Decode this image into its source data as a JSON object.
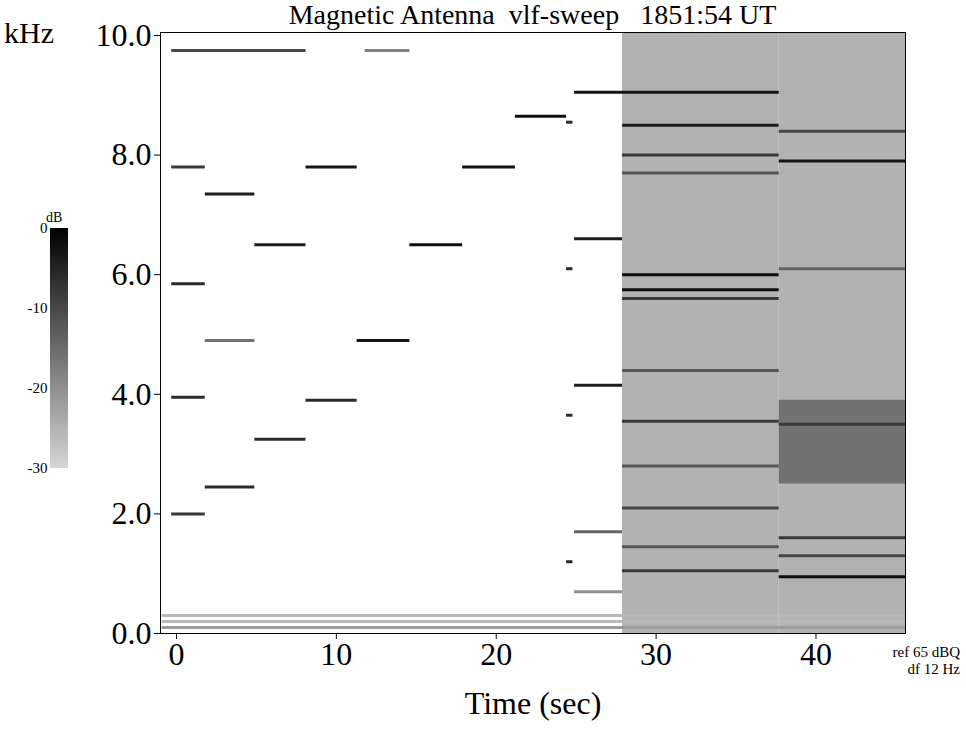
{
  "chart_data": {
    "type": "spectrogram",
    "title": "Magnetic Antenna  vlf-sweep   1851:54 UT",
    "x_label": "Time (sec)",
    "y_label": "kHz",
    "xlim": [
      -1,
      45.6
    ],
    "ylim": [
      0,
      10.05
    ],
    "xticks": [
      0,
      10,
      20,
      30,
      40
    ],
    "yticks": [
      {
        "value": 0,
        "label": "0.0"
      },
      {
        "value": 2,
        "label": "2.0"
      },
      {
        "value": 4,
        "label": "4.0"
      },
      {
        "value": 6,
        "label": "6.0"
      },
      {
        "value": 8,
        "label": "8.0"
      },
      {
        "value": 10,
        "label": "10.0"
      }
    ],
    "annotations": [
      "ref 65 dBQ",
      "df 12 Hz"
    ],
    "colorbar": {
      "label": "dB",
      "lim": [
        -30,
        0
      ],
      "ticks": [
        0,
        -10,
        -20,
        -30
      ]
    },
    "regions": [
      {
        "t0": 27.9,
        "t1": 37.7,
        "f0": 0,
        "f1": 10.05,
        "level": -25
      },
      {
        "t0": 37.7,
        "t1": 45.6,
        "f0": 0,
        "f1": 10.05,
        "level": -25
      },
      {
        "t0": 37.7,
        "t1": 45.6,
        "f0": 2.5,
        "f1": 3.9,
        "level": -16
      }
    ],
    "segments": [
      {
        "t0": -0.3,
        "t1": 1.8,
        "f": 2.0,
        "level": -8
      },
      {
        "t0": -0.3,
        "t1": 1.8,
        "f": 3.95,
        "level": -6
      },
      {
        "t0": -0.3,
        "t1": 1.8,
        "f": 5.85,
        "level": -6
      },
      {
        "t0": -0.3,
        "t1": 1.8,
        "f": 7.8,
        "level": -8
      },
      {
        "t0": -0.3,
        "t1": 8.1,
        "f": 9.75,
        "level": -10
      },
      {
        "t0": 1.8,
        "t1": 4.9,
        "f": 2.45,
        "level": -6
      },
      {
        "t0": 1.8,
        "t1": 4.9,
        "f": 4.9,
        "level": -16
      },
      {
        "t0": 1.8,
        "t1": 4.9,
        "f": 7.35,
        "level": -4
      },
      {
        "t0": 4.9,
        "t1": 8.1,
        "f": 3.25,
        "level": -6
      },
      {
        "t0": 4.9,
        "t1": 8.1,
        "f": 6.5,
        "level": -4
      },
      {
        "t0": 8.1,
        "t1": 11.3,
        "f": 3.9,
        "level": -6
      },
      {
        "t0": 8.1,
        "t1": 11.3,
        "f": 7.8,
        "level": -3
      },
      {
        "t0": 11.3,
        "t1": 14.6,
        "f": 4.9,
        "level": -3
      },
      {
        "t0": 11.8,
        "t1": 14.6,
        "f": 9.75,
        "level": -18
      },
      {
        "t0": 14.6,
        "t1": 17.9,
        "f": 6.5,
        "level": -2
      },
      {
        "t0": 17.9,
        "t1": 21.2,
        "f": 7.8,
        "level": -2
      },
      {
        "t0": 21.2,
        "t1": 24.4,
        "f": 8.65,
        "level": -2
      },
      {
        "t0": 24.4,
        "t1": 24.8,
        "f": 1.2,
        "level": -6
      },
      {
        "t0": 24.4,
        "t1": 24.8,
        "f": 3.65,
        "level": -6
      },
      {
        "t0": 24.4,
        "t1": 24.8,
        "f": 6.1,
        "level": -6
      },
      {
        "t0": 24.4,
        "t1": 24.8,
        "f": 8.55,
        "level": -6
      },
      {
        "t0": 24.9,
        "t1": 27.9,
        "f": 0.7,
        "level": -20
      },
      {
        "t0": 24.9,
        "t1": 27.9,
        "f": 1.7,
        "level": -14
      },
      {
        "t0": 24.9,
        "t1": 27.9,
        "f": 4.15,
        "level": -4
      },
      {
        "t0": 24.9,
        "t1": 27.9,
        "f": 6.6,
        "level": -4
      },
      {
        "t0": 24.9,
        "t1": 37.7,
        "f": 9.05,
        "level": -3
      },
      {
        "t0": 27.9,
        "t1": 37.7,
        "f": 8.5,
        "level": -4
      },
      {
        "t0": 27.9,
        "t1": 37.7,
        "f": 8.0,
        "level": -8
      },
      {
        "t0": 27.9,
        "t1": 37.7,
        "f": 7.7,
        "level": -12
      },
      {
        "t0": 27.9,
        "t1": 37.7,
        "f": 6.0,
        "level": -2
      },
      {
        "t0": 27.9,
        "t1": 37.7,
        "f": 5.75,
        "level": -2
      },
      {
        "t0": 27.9,
        "t1": 37.7,
        "f": 5.6,
        "level": -8
      },
      {
        "t0": 27.9,
        "t1": 37.7,
        "f": 4.4,
        "level": -12
      },
      {
        "t0": 27.9,
        "t1": 37.7,
        "f": 3.55,
        "level": -8
      },
      {
        "t0": 27.9,
        "t1": 37.7,
        "f": 2.8,
        "level": -12
      },
      {
        "t0": 27.9,
        "t1": 37.7,
        "f": 2.1,
        "level": -10
      },
      {
        "t0": 27.9,
        "t1": 37.7,
        "f": 1.45,
        "level": -12
      },
      {
        "t0": 27.9,
        "t1": 37.7,
        "f": 1.05,
        "level": -8
      },
      {
        "t0": 37.7,
        "t1": 45.6,
        "f": 8.4,
        "level": -10
      },
      {
        "t0": 37.7,
        "t1": 45.6,
        "f": 7.9,
        "level": -3
      },
      {
        "t0": 37.7,
        "t1": 45.6,
        "f": 6.1,
        "level": -14
      },
      {
        "t0": 37.7,
        "t1": 45.6,
        "f": 3.5,
        "level": -8
      },
      {
        "t0": 37.7,
        "t1": 45.6,
        "f": 1.6,
        "level": -8
      },
      {
        "t0": 37.7,
        "t1": 45.6,
        "f": 1.3,
        "level": -10
      },
      {
        "t0": 37.7,
        "t1": 45.6,
        "f": 0.95,
        "level": -2
      },
      {
        "t0": -0.9,
        "t1": 45.6,
        "f": 0.1,
        "level": -22
      },
      {
        "t0": -0.9,
        "t1": 45.6,
        "f": 0.2,
        "level": -26
      },
      {
        "t0": -0.9,
        "t1": 45.6,
        "f": 0.3,
        "level": -26
      }
    ]
  }
}
